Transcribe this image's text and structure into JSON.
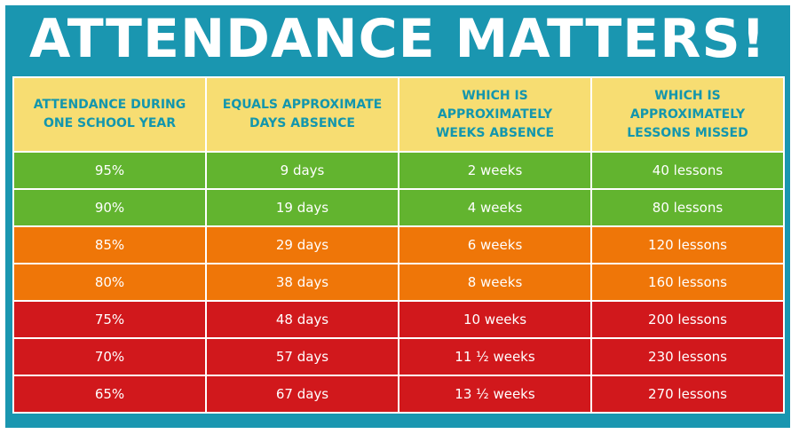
{
  "title": "ATTENDANCE MATTERS!",
  "columns": [
    [
      "ATTENDANCE DURING",
      "ONE SCHOOL YEAR"
    ],
    [
      "EQUALS APPROXIMATE",
      "DAYS ABSENCE"
    ],
    [
      "WHICH IS",
      "APPROXIMATELY",
      "WEEKS ABSENCE"
    ],
    [
      "WHICH IS",
      "APPROXIMATELY",
      "LESSONS MISSED"
    ]
  ],
  "rows": [
    {
      "attendance": "95%",
      "days": "9 days",
      "weeks": "2 weeks",
      "lessons": "40 lessons",
      "band": "green"
    },
    {
      "attendance": "90%",
      "days": "19 days",
      "weeks": "4 weeks",
      "lessons": "80 lessons",
      "band": "green"
    },
    {
      "attendance": "85%",
      "days": "29 days",
      "weeks": "6 weeks",
      "lessons": "120 lessons",
      "band": "orange"
    },
    {
      "attendance": "80%",
      "days": "38 days",
      "weeks": "8 weeks",
      "lessons": "160 lessons",
      "band": "orange"
    },
    {
      "attendance": "75%",
      "days": "48 days",
      "weeks": "10 weeks",
      "lessons": "200 lessons",
      "band": "red"
    },
    {
      "attendance": "70%",
      "days": "57 days",
      "weeks": "11 ½ weeks",
      "lessons": "230 lessons",
      "band": "red"
    },
    {
      "attendance": "65%",
      "days": "67 days",
      "weeks": "13 ½ weeks",
      "lessons": "270 lessons",
      "band": "red"
    }
  ],
  "colors": {
    "frame": "#1a96b0",
    "header_bg": "#f7dd72",
    "header_text": "#1396ad",
    "green": "#62b42f",
    "orange": "#ef7608",
    "red": "#d1181c"
  }
}
